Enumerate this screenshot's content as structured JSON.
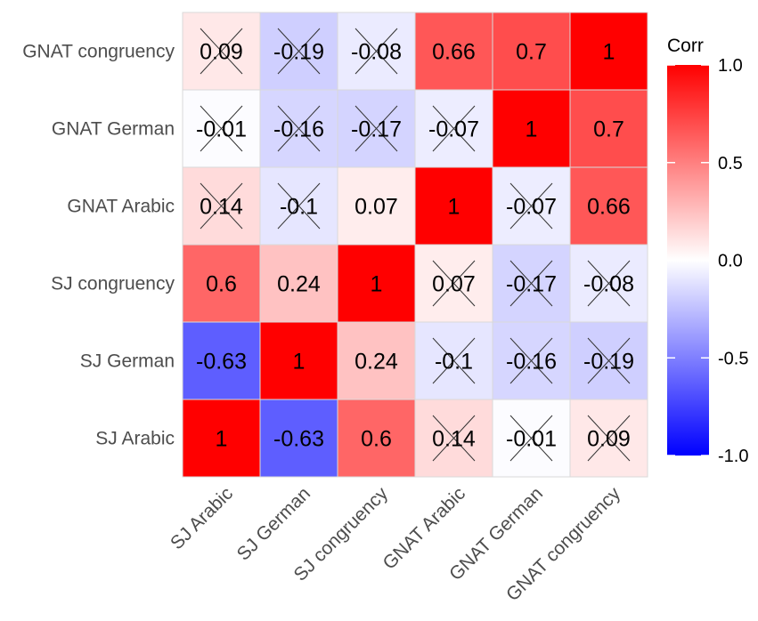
{
  "chart_data": {
    "type": "heatmap",
    "title": "",
    "variables": [
      "SJ Arabic",
      "SJ German",
      "SJ congruency",
      "GNAT Arabic",
      "GNAT German",
      "GNAT congruency"
    ],
    "matrix": [
      [
        1,
        -0.63,
        0.6,
        0.14,
        -0.01,
        0.09
      ],
      [
        -0.63,
        1,
        0.24,
        -0.1,
        -0.16,
        -0.19
      ],
      [
        0.6,
        0.24,
        1,
        0.07,
        -0.17,
        -0.08
      ],
      [
        0.14,
        -0.1,
        0.07,
        1,
        -0.07,
        0.66
      ],
      [
        -0.01,
        -0.16,
        -0.17,
        -0.07,
        1,
        0.7
      ],
      [
        0.09,
        -0.19,
        -0.08,
        0.66,
        0.7,
        1
      ]
    ],
    "labels": [
      [
        "1",
        "-0.63",
        "0.6",
        "0.14",
        "-0.01",
        "0.09"
      ],
      [
        "-0.63",
        "1",
        "0.24",
        "-0.1",
        "-0.16",
        "-0.19"
      ],
      [
        "0.6",
        "0.24",
        "1",
        "0.07",
        "-0.17",
        "-0.08"
      ],
      [
        "0.14",
        "-0.1",
        "0.07",
        "1",
        "-0.07",
        "0.66"
      ],
      [
        "-0.01",
        "-0.16",
        "-0.17",
        "-0.07",
        "1",
        "0.7"
      ],
      [
        "0.09",
        "-0.19",
        "-0.08",
        "0.66",
        "0.7",
        "1"
      ]
    ],
    "crossed_out": [
      [
        false,
        false,
        false,
        true,
        true,
        true
      ],
      [
        false,
        false,
        false,
        true,
        true,
        true
      ],
      [
        false,
        false,
        false,
        true,
        true,
        true
      ],
      [
        true,
        true,
        false,
        false,
        true,
        false
      ],
      [
        true,
        true,
        true,
        true,
        false,
        false
      ],
      [
        true,
        true,
        true,
        false,
        false,
        false
      ]
    ],
    "legend": {
      "title": "Corr",
      "range": [
        -1.0,
        1.0
      ],
      "ticks": [
        "1.0",
        "0.5",
        "0.0",
        "-0.5",
        "-1.0"
      ],
      "tick_values": [
        1.0,
        0.5,
        0.0,
        -0.5,
        -1.0
      ],
      "position": "right"
    },
    "colors": {
      "low": "#0000ff",
      "mid": "#ffffff",
      "high": "#ff0000",
      "grid": "#d9d9d9"
    }
  }
}
